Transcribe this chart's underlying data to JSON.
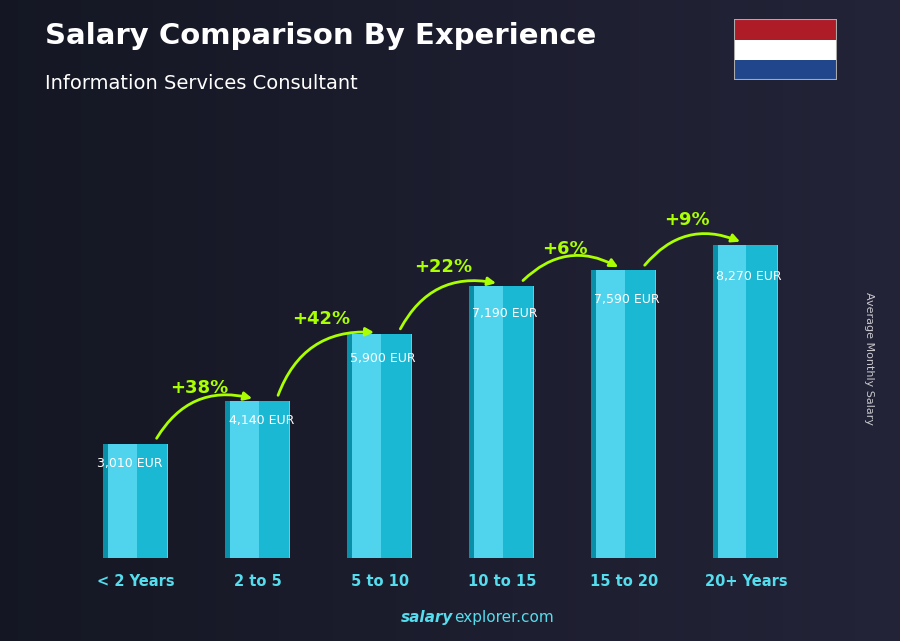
{
  "title": "Salary Comparison By Experience",
  "subtitle": "Information Services Consultant",
  "ylabel": "Average Monthly Salary",
  "watermark_bold": "salary",
  "watermark_normal": "explorer.com",
  "categories": [
    "< 2 Years",
    "2 to 5",
    "5 to 10",
    "10 to 15",
    "15 to 20",
    "20+ Years"
  ],
  "values": [
    3010,
    4140,
    5900,
    7190,
    7590,
    8270
  ],
  "value_labels": [
    "3,010 EUR",
    "4,140 EUR",
    "5,900 EUR",
    "7,190 EUR",
    "7,590 EUR",
    "8,270 EUR"
  ],
  "pct_labels": [
    "+38%",
    "+42%",
    "+22%",
    "+6%",
    "+9%"
  ],
  "bar_color_main": "#1BB8D4",
  "bar_color_light": "#50D4ED",
  "bar_color_dark": "#0A8FA8",
  "pct_color": "#AAFF00",
  "title_color": "#FFFFFF",
  "subtitle_color": "#FFFFFF",
  "label_color": "#FFFFFF",
  "tick_color": "#55DDEE",
  "bg_color": "#1a1a2e",
  "ylim": [
    0,
    10500
  ],
  "bar_width": 0.52,
  "arrow_color": "#AAFF00",
  "flag_colors": [
    "#AE1C28",
    "#FFFFFF",
    "#21468B"
  ]
}
